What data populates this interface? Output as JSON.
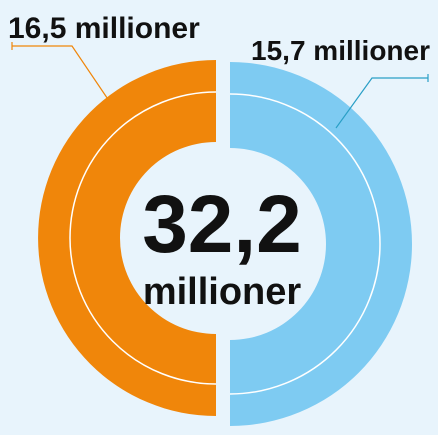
{
  "chart_data": {
    "type": "pie",
    "style": "split-donut",
    "total": {
      "value_text": "32,2",
      "unit_text": "millioner"
    },
    "series": [
      {
        "value": 16.5,
        "label": "16,5 millioner",
        "color": "#f0860a",
        "side": "left"
      },
      {
        "value": 15.7,
        "label": "15,7 millioner",
        "color": "#7ecbf2",
        "side": "right"
      }
    ],
    "inner_ring_line": true,
    "colors": {
      "background": "#e8f4fc",
      "ring_divider": "#ffffff",
      "text": "#111111"
    }
  }
}
